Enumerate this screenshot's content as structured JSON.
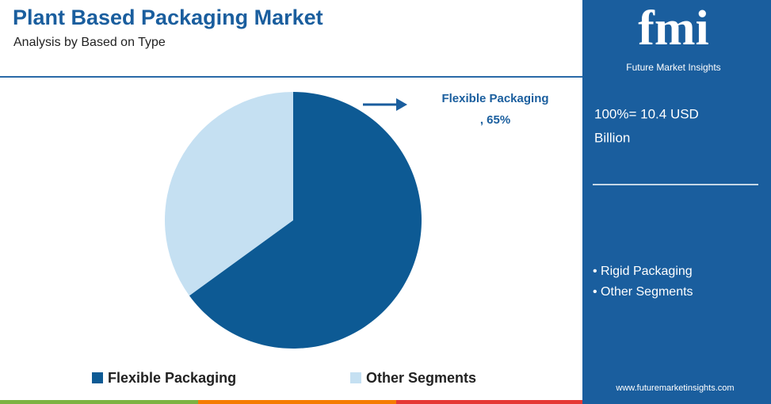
{
  "chart_data": {
    "type": "pie",
    "title": "Plant Based Packaging Market",
    "subtitle": "Analysis by Based on Type",
    "categories": [
      "Flexible Packaging",
      "Other Segments"
    ],
    "values": [
      65,
      35
    ],
    "value_labels": [
      ", 65%",
      null
    ],
    "colors": [
      "#0d5a94",
      "#c5e0f2"
    ]
  },
  "panel": {
    "logo": "fmi",
    "brand": "Future Market Insights",
    "total": [
      "100%= 10.4 USD",
      "Billion"
    ],
    "bullets": [
      "• Rigid Packaging",
      "• Other Segments"
    ],
    "website": "www.futuremarketinsights.com"
  }
}
